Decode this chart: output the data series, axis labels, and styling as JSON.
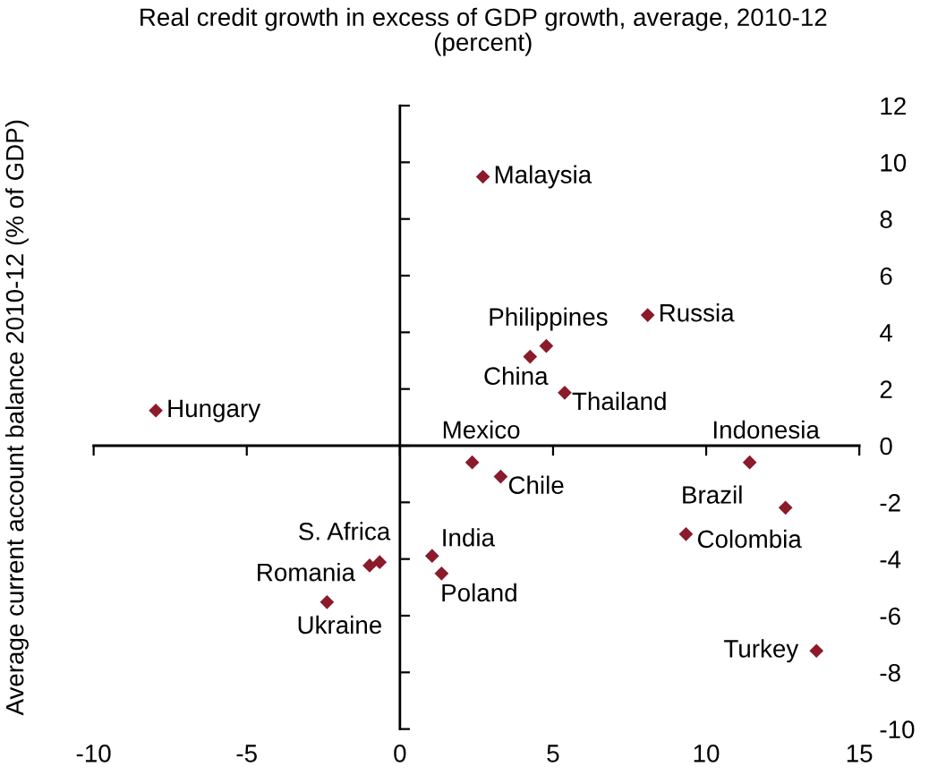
{
  "chart_data": {
    "type": "scatter",
    "title": "Real credit growth in excess of GDP growth, average, 2010-12\n(percent)",
    "ylabel": "Average current account balance 2010-12 (% of GDP)",
    "series": [
      {
        "color": "#8b1a2b",
        "x": [
          -7.97,
          2.71,
          8.09,
          4.78,
          4.25,
          5.38,
          2.36,
          3.29,
          11.42,
          12.59,
          9.34,
          13.6,
          1.05,
          1.36,
          -0.66,
          -0.99,
          -2.38
        ],
        "values": [
          1.24,
          9.49,
          4.61,
          3.52,
          3.14,
          1.87,
          -0.59,
          -1.09,
          -0.59,
          -2.19,
          -3.12,
          -7.24,
          -3.89,
          -4.51,
          -4.11,
          -4.23,
          -5.52
        ]
      }
    ],
    "annotations": [
      {
        "text": "Hungary",
        "x": -7.97,
        "y": 1.24
      },
      {
        "text": "Malaysia",
        "x": 2.71,
        "y": 9.49
      },
      {
        "text": "Russia",
        "x": 8.09,
        "y": 4.61
      },
      {
        "text": "Philippines",
        "x": 4.78,
        "y": 3.52
      },
      {
        "text": "China",
        "x": 4.25,
        "y": 3.14
      },
      {
        "text": "Thailand",
        "x": 5.38,
        "y": 1.87
      },
      {
        "text": "Mexico",
        "x": 2.36,
        "y": -0.59
      },
      {
        "text": "Chile",
        "x": 3.29,
        "y": -1.09
      },
      {
        "text": "Indonesia",
        "x": 11.42,
        "y": -0.59
      },
      {
        "text": "Brazil",
        "x": 12.59,
        "y": -2.19
      },
      {
        "text": "Colombia",
        "x": 9.34,
        "y": -3.12
      },
      {
        "text": "Turkey",
        "x": 13.6,
        "y": -7.24
      },
      {
        "text": "India",
        "x": 1.05,
        "y": -3.89
      },
      {
        "text": "Poland",
        "x": 1.36,
        "y": -4.51
      },
      {
        "text": "S. Africa",
        "x": -0.66,
        "y": -4.11
      },
      {
        "text": "Romania",
        "x": -0.99,
        "y": -4.23
      },
      {
        "text": "Ukraine",
        "x": -2.38,
        "y": -5.52
      }
    ],
    "xlim": [
      -10,
      15
    ],
    "xticks": [
      -10,
      -5,
      0,
      5,
      10,
      15
    ],
    "ylim": [
      -10,
      12
    ],
    "yticks": [
      -10,
      -8,
      -6,
      -4,
      -2,
      0,
      2,
      4,
      6,
      8,
      10,
      12
    ],
    "marker": "diamond",
    "legend": false
  }
}
